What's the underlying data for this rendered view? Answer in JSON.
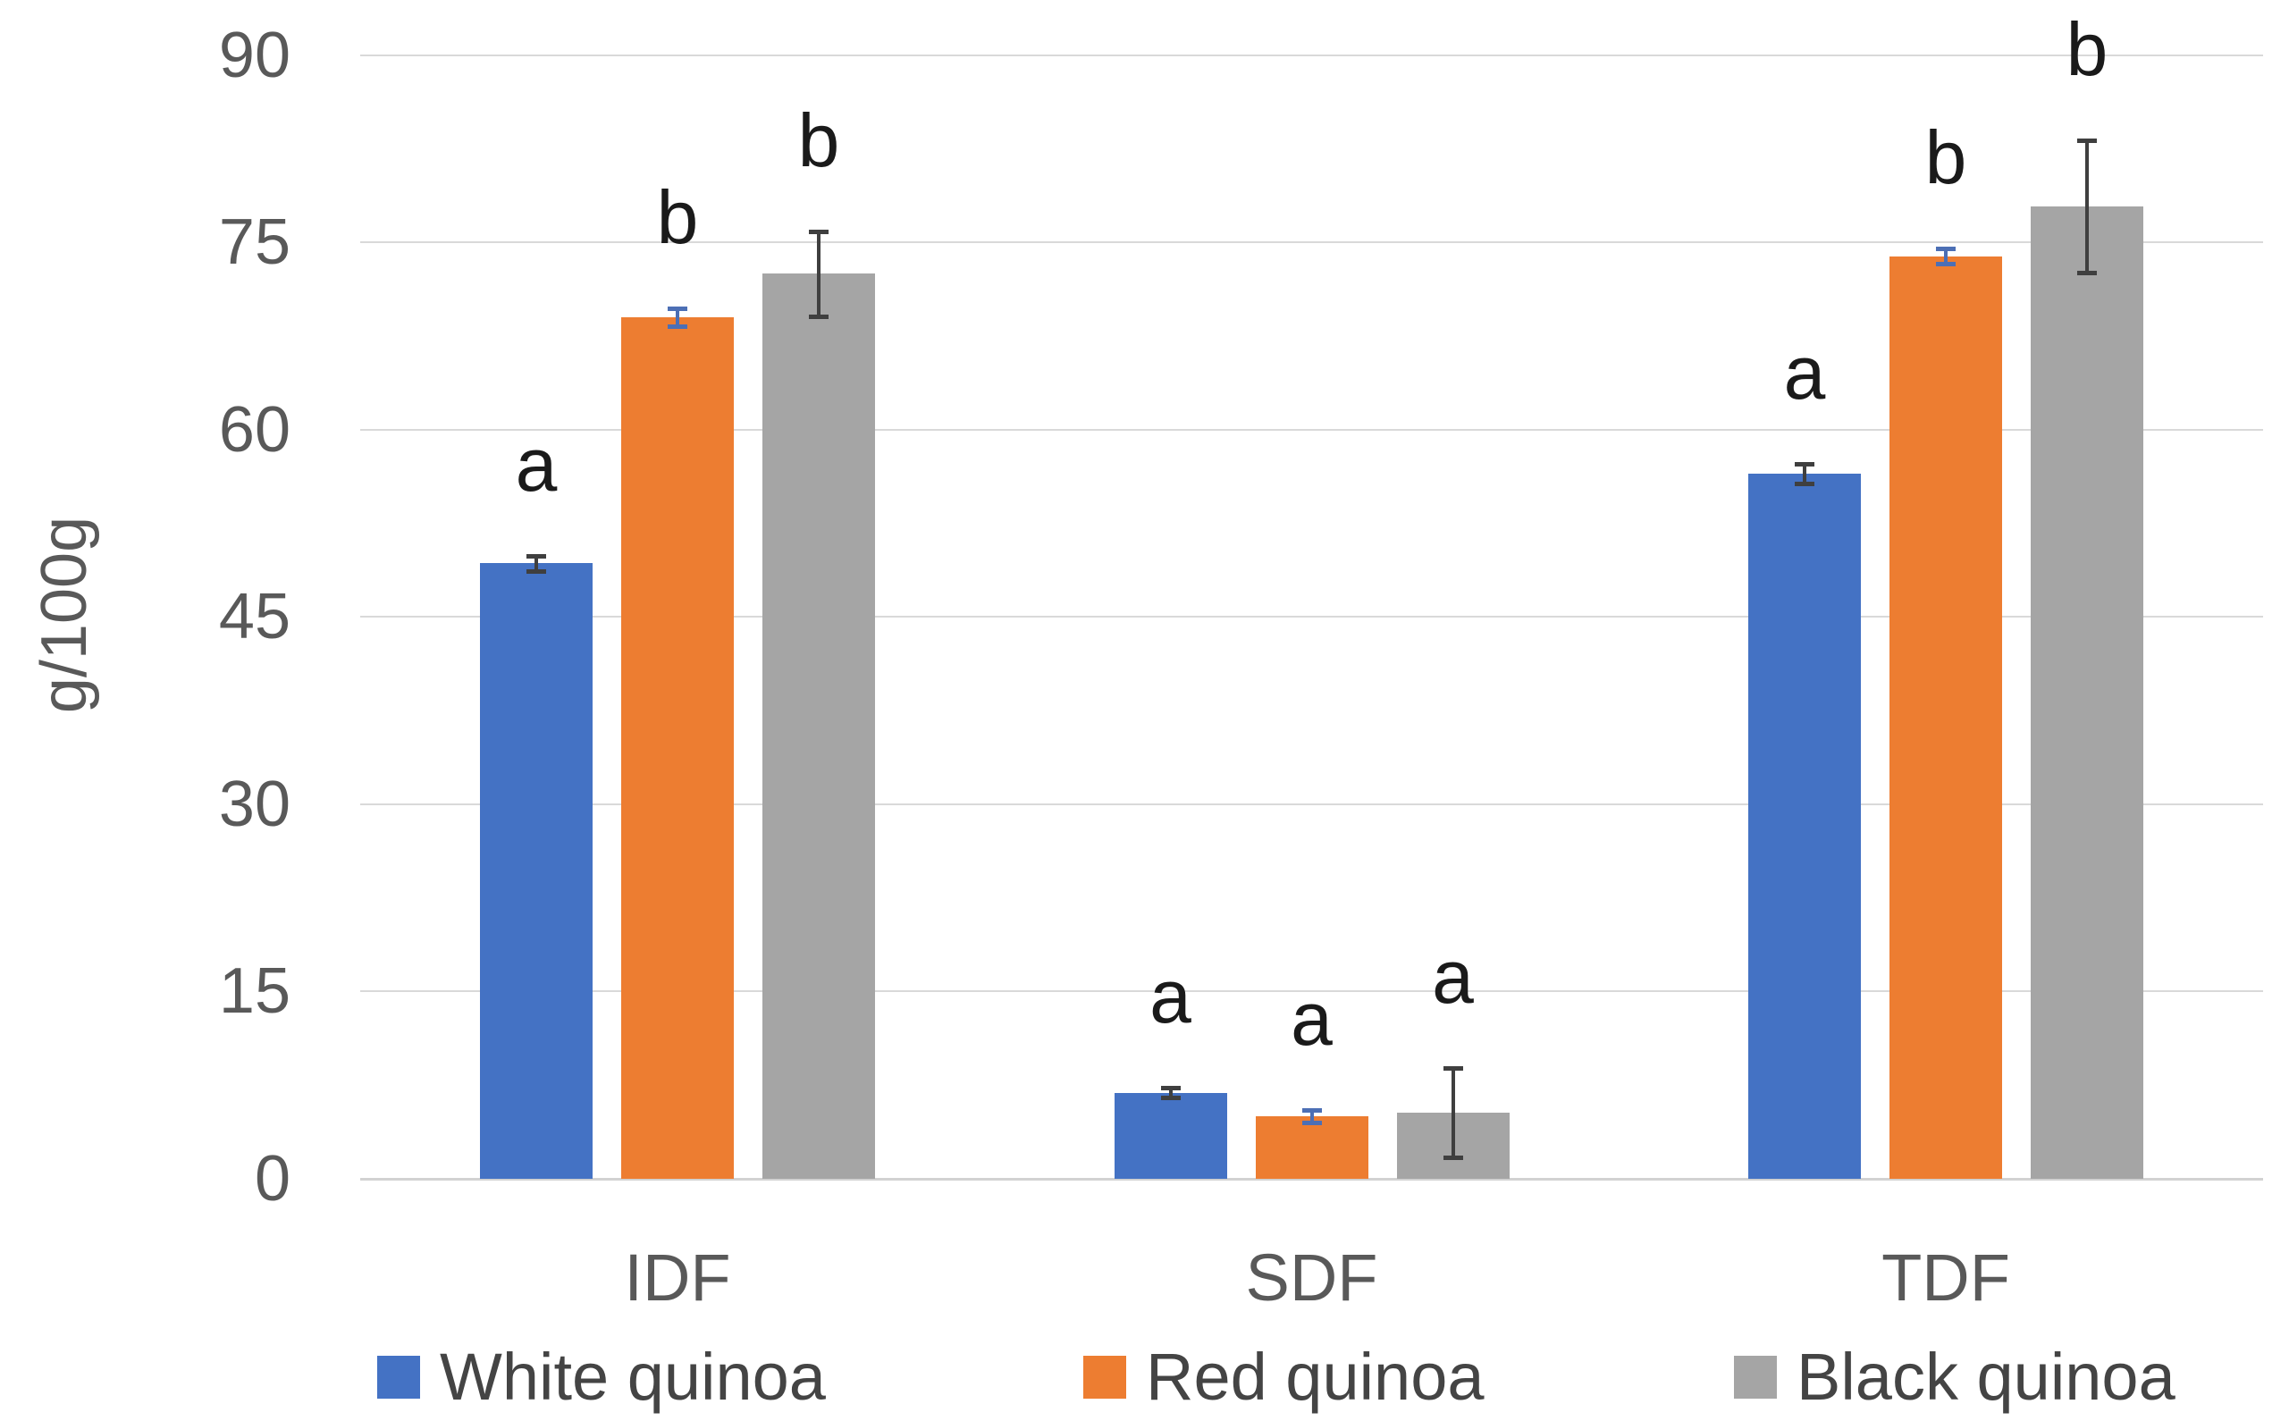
{
  "chart_data": {
    "type": "bar",
    "title": "",
    "xlabel": "",
    "ylabel": "g/100g",
    "categories": [
      "IDF",
      "SDF",
      "TDF"
    ],
    "y_ticks": [
      "0",
      "15",
      "30",
      "45",
      "60",
      "75",
      "90"
    ],
    "ylim": [
      0,
      90
    ],
    "grid": true,
    "legend_position": "bottom",
    "series": [
      {
        "name": "White quinoa",
        "color": "#4472C4",
        "error_bar_color": "#3F3F3F",
        "values": [
          49.3,
          6.9,
          56.5
        ],
        "errors": [
          0.6,
          0.4,
          0.8
        ],
        "sig_letters": [
          "a",
          "a",
          "a"
        ]
      },
      {
        "name": "Red quinoa",
        "color": "#ED7D31",
        "error_bar_color": "#4C6FB5",
        "values": [
          69.0,
          5.0,
          73.9
        ],
        "errors": [
          0.7,
          0.5,
          0.6
        ],
        "sig_letters": [
          "b",
          "a",
          "b"
        ]
      },
      {
        "name": "Black quinoa",
        "color": "#A5A5A5",
        "error_bar_color": "#3F3F3F",
        "values": [
          72.5,
          5.3,
          77.9
        ],
        "errors": [
          3.4,
          3.6,
          5.3
        ],
        "sig_letters": [
          "b",
          "a",
          "b"
        ]
      }
    ],
    "colors": {
      "axis_text": "#595959",
      "legend_text": "#444444",
      "gridline": "#D9D9D9",
      "annotation": "#1A1A1A",
      "background": "#FFFFFF"
    }
  }
}
